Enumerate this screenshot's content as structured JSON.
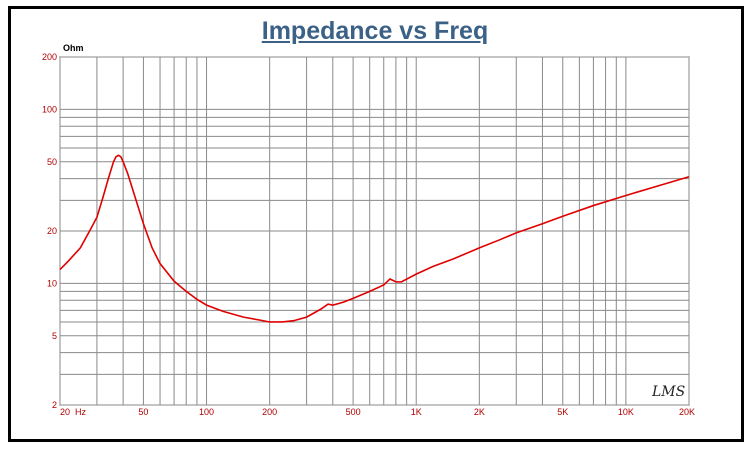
{
  "chart_data": {
    "type": "line",
    "title": "Impedance vs Freq",
    "ylabel_unit": "Ohm",
    "xscale": "log",
    "yscale": "log",
    "xlim": [
      20,
      20000
    ],
    "ylim": [
      2,
      200
    ],
    "x_ticks": [
      {
        "value": 20,
        "label": "20  Hz"
      },
      {
        "value": 50,
        "label": "50"
      },
      {
        "value": 100,
        "label": "100"
      },
      {
        "value": 200,
        "label": "200"
      },
      {
        "value": 500,
        "label": "500"
      },
      {
        "value": 1000,
        "label": "1K"
      },
      {
        "value": 2000,
        "label": "2K"
      },
      {
        "value": 5000,
        "label": "5K"
      },
      {
        "value": 10000,
        "label": "10K"
      },
      {
        "value": 20000,
        "label": "20K"
      }
    ],
    "y_ticks": [
      {
        "value": 200,
        "label": "200"
      },
      {
        "value": 100,
        "label": "100"
      },
      {
        "value": 50,
        "label": "50"
      },
      {
        "value": 20,
        "label": "20"
      },
      {
        "value": 10,
        "label": "10"
      },
      {
        "value": 5,
        "label": "5"
      },
      {
        "value": 2,
        "label": "2"
      }
    ],
    "grid": true,
    "series": [
      {
        "color": "#e00000",
        "points": [
          [
            20,
            12
          ],
          [
            22,
            13.5
          ],
          [
            25,
            16
          ],
          [
            28,
            20.5
          ],
          [
            30,
            24
          ],
          [
            32,
            31
          ],
          [
            34,
            40
          ],
          [
            36,
            50
          ],
          [
            37,
            53.5
          ],
          [
            38,
            54.5
          ],
          [
            39,
            53.5
          ],
          [
            40,
            50
          ],
          [
            42,
            43
          ],
          [
            45,
            33
          ],
          [
            50,
            22
          ],
          [
            55,
            16
          ],
          [
            60,
            13
          ],
          [
            70,
            10.3
          ],
          [
            80,
            9
          ],
          [
            90,
            8.1
          ],
          [
            100,
            7.5
          ],
          [
            120,
            6.9
          ],
          [
            150,
            6.4
          ],
          [
            180,
            6.15
          ],
          [
            200,
            6.0
          ],
          [
            230,
            6.0
          ],
          [
            260,
            6.1
          ],
          [
            300,
            6.4
          ],
          [
            350,
            7.1
          ],
          [
            380,
            7.6
          ],
          [
            400,
            7.5
          ],
          [
            450,
            7.8
          ],
          [
            500,
            8.2
          ],
          [
            600,
            9.0
          ],
          [
            700,
            9.8
          ],
          [
            750,
            10.6
          ],
          [
            800,
            10.2
          ],
          [
            850,
            10.2
          ],
          [
            1000,
            11.3
          ],
          [
            1200,
            12.5
          ],
          [
            1500,
            13.8
          ],
          [
            2000,
            16.0
          ],
          [
            2500,
            17.8
          ],
          [
            3000,
            19.5
          ],
          [
            4000,
            22.0
          ],
          [
            5000,
            24.3
          ],
          [
            7000,
            28
          ],
          [
            10000,
            32
          ],
          [
            15000,
            37
          ],
          [
            20000,
            41
          ]
        ]
      }
    ],
    "watermark": "LMS"
  }
}
